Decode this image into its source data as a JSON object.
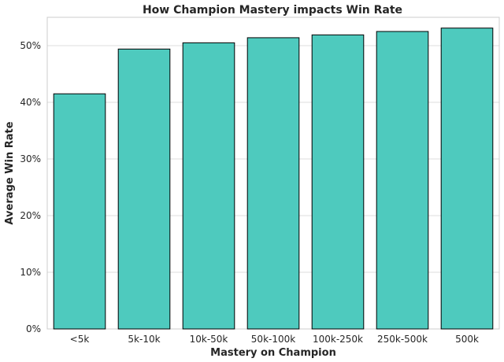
{
  "chart_data": {
    "type": "bar",
    "title": "How Champion Mastery impacts Win Rate",
    "xlabel": "Mastery on Champion",
    "ylabel": "Average Win Rate",
    "categories": [
      "<5k",
      "5k-10k",
      "10k-50k",
      "50k-100k",
      "100k-250k",
      "250k-500k",
      "500k"
    ],
    "values": [
      41.5,
      49.4,
      50.5,
      51.4,
      51.9,
      52.5,
      53.1
    ],
    "ylim": [
      0,
      55
    ],
    "yticks": [
      0,
      10,
      20,
      30,
      40,
      50
    ],
    "ytick_labels": [
      "0%",
      "10%",
      "20%",
      "30%",
      "40%",
      "50%"
    ],
    "grid": true,
    "bar_color": "#4ecabe",
    "edge_color": "#000000"
  }
}
